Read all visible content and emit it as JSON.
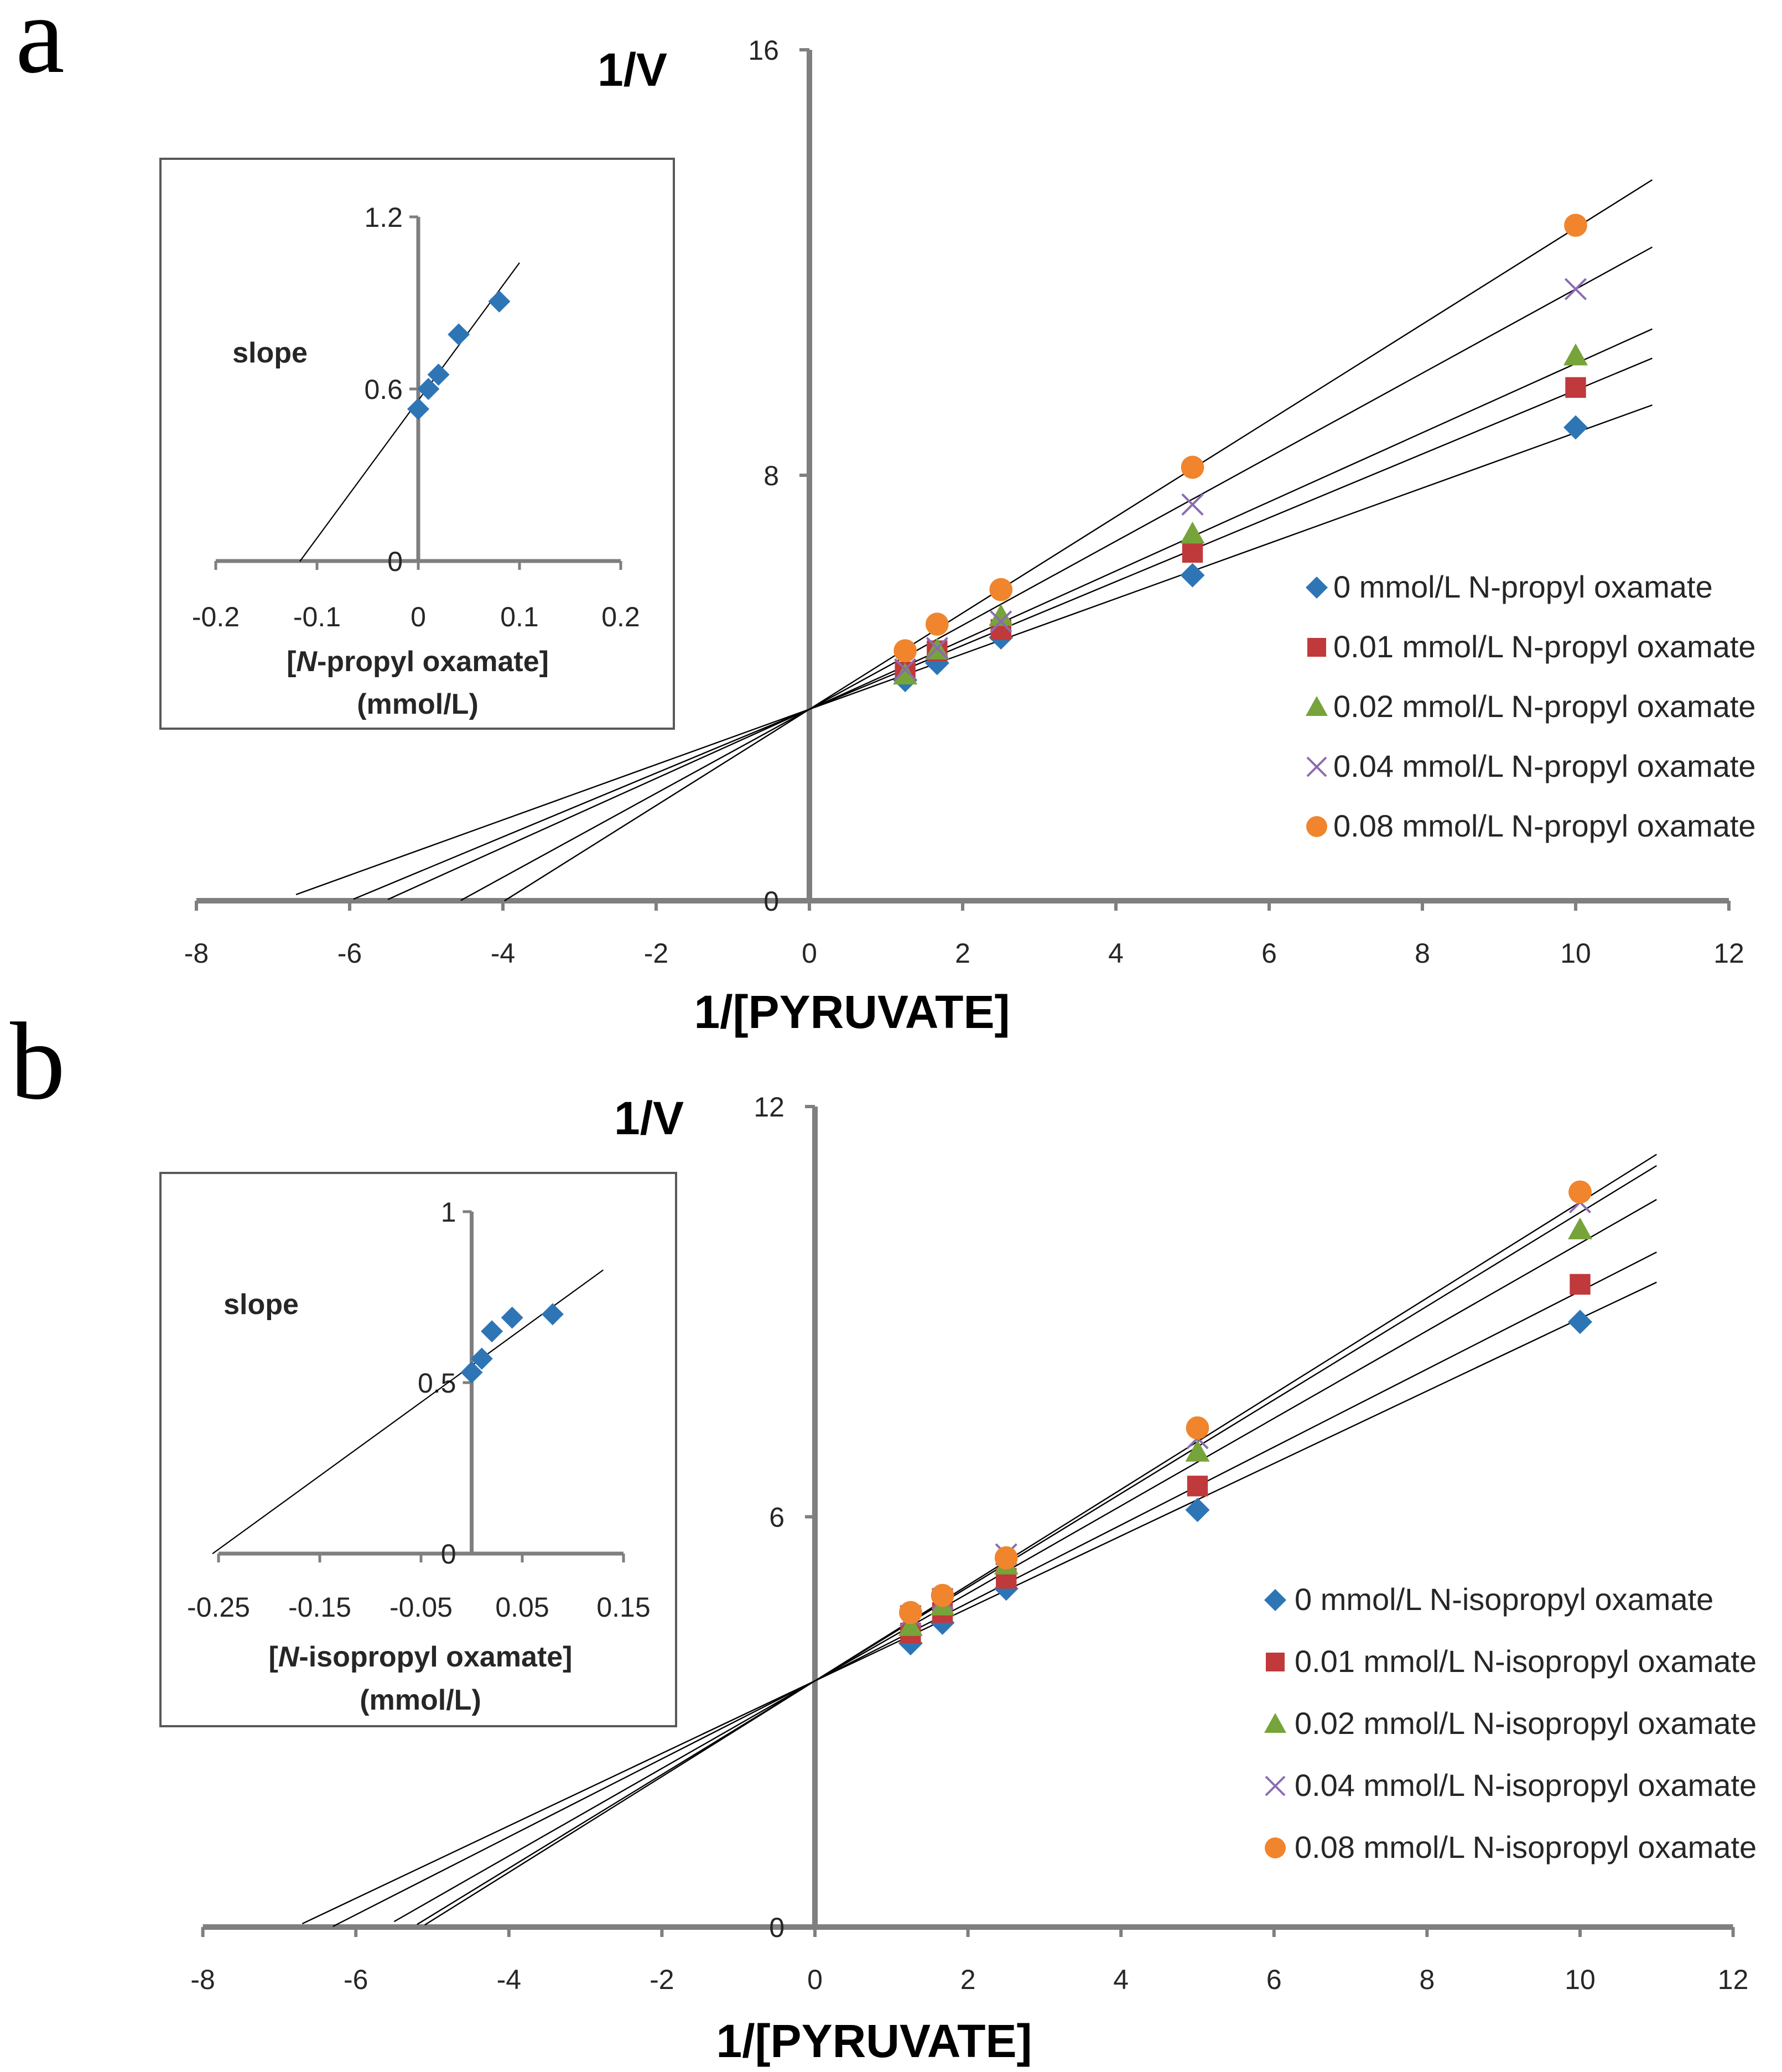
{
  "colors": {
    "series": [
      "#2e75b6",
      "#c0393b",
      "#77a33b",
      "#8c6bb1",
      "#f0852d"
    ],
    "axis": "#7f7f7f",
    "fit_line": "#000000",
    "inset_marker": "#2e75b6"
  },
  "chart_data": [
    {
      "panel_label": "a",
      "type": "scatter",
      "xlabel": "1/[PYRUVATE]",
      "ylabel": "1/V",
      "xlim": [
        -8,
        12
      ],
      "ylim": [
        0,
        16
      ],
      "x_ticks": [
        "-8",
        "-6",
        "-4",
        "-2",
        "0",
        "2",
        "4",
        "6",
        "8",
        "10",
        "12"
      ],
      "y_ticks": [
        "0",
        "8",
        "16"
      ],
      "legend_position": "right",
      "series": [
        {
          "name": "0 mmol/L N-propyl oxamate",
          "marker": "diamond",
          "x": [
            1.25,
            1.667,
            2.5,
            5,
            10
          ],
          "y": [
            4.15,
            4.47,
            4.95,
            6.12,
            8.9
          ],
          "fit": {
            "slope": 0.52,
            "intercept": 3.6,
            "x_from": -6.7,
            "x_to": 11
          }
        },
        {
          "name": "0.01 mmol/L N-propyl oxamate",
          "marker": "square",
          "x": [
            1.25,
            1.667,
            2.5,
            5,
            10
          ],
          "y": [
            4.3,
            4.7,
            5.1,
            6.55,
            9.65
          ],
          "fit": {
            "slope": 0.6,
            "intercept": 3.6,
            "x_from": -5.95,
            "x_to": 11
          }
        },
        {
          "name": "0.02 mmol/L N-propyl oxamate",
          "marker": "triangle",
          "x": [
            1.25,
            1.667,
            2.5,
            5,
            10
          ],
          "y": [
            4.25,
            4.72,
            5.35,
            6.9,
            10.25
          ],
          "fit": {
            "slope": 0.65,
            "intercept": 3.6,
            "x_from": -5.5,
            "x_to": 11
          }
        },
        {
          "name": "0.04 mmol/L N-propyl oxamate",
          "marker": "cross",
          "x": [
            1.25,
            1.667,
            2.5,
            5,
            10
          ],
          "y": [
            4.35,
            4.75,
            5.25,
            7.45,
            11.5
          ],
          "fit": {
            "slope": 0.79,
            "intercept": 3.6,
            "x_from": -4.55,
            "x_to": 11
          }
        },
        {
          "name": "0.08 mmol/L N-propyl oxamate",
          "marker": "circle",
          "x": [
            1.25,
            1.667,
            2.5,
            5,
            10
          ],
          "y": [
            4.7,
            5.2,
            5.85,
            8.15,
            12.7
          ],
          "fit": {
            "slope": 0.905,
            "intercept": 3.6,
            "x_from": -3.98,
            "x_to": 11
          }
        }
      ],
      "inset": {
        "xlabel_prefix": "N",
        "xlabel_rest": "-propyl oxamate]",
        "xlabel_bracket": "[",
        "xlabel_units": "(mmol/L)",
        "ylabel": "slope",
        "xlim": [
          -0.2,
          0.2
        ],
        "ylim": [
          0,
          1.2
        ],
        "x_ticks": [
          "-0.2",
          "-0.1",
          "0",
          "0.1",
          "0.2"
        ],
        "y_ticks": [
          "0",
          "0.6",
          "1.2"
        ],
        "points": {
          "x": [
            0,
            0.01,
            0.02,
            0.04,
            0.08
          ],
          "y": [
            0.53,
            0.6,
            0.65,
            0.79,
            0.905
          ]
        },
        "fit": {
          "slope": 4.8,
          "intercept": 0.56,
          "x_from": -0.117,
          "x_to": 0.1
        }
      }
    },
    {
      "panel_label": "b",
      "type": "scatter",
      "xlabel": "1/[PYRUVATE]",
      "ylabel": "1/V",
      "xlim": [
        -8,
        12
      ],
      "ylim": [
        0,
        12
      ],
      "x_ticks": [
        "-8",
        "-6",
        "-4",
        "-2",
        "0",
        "2",
        "4",
        "6",
        "8",
        "10",
        "12"
      ],
      "y_ticks": [
        "0",
        "6",
        "12"
      ],
      "legend_position": "right",
      "series": [
        {
          "name": "0 mmol/L N-isopropyl oxamate",
          "marker": "diamond",
          "x": [
            1.25,
            1.667,
            2.5,
            5,
            10
          ],
          "y": [
            4.15,
            4.45,
            4.95,
            6.1,
            8.85
          ],
          "fit": {
            "slope": 0.53,
            "intercept": 3.6,
            "x_from": -6.7,
            "x_to": 11
          }
        },
        {
          "name": "0.01 mmol/L N-isopropyl oxamate",
          "marker": "square",
          "x": [
            1.25,
            1.667,
            2.5,
            5,
            10
          ],
          "y": [
            4.3,
            4.6,
            5.1,
            6.45,
            9.4
          ],
          "fit": {
            "slope": 0.57,
            "intercept": 3.6,
            "x_from": -6.3,
            "x_to": 11
          }
        },
        {
          "name": "0.02 mmol/L N-isopropyl oxamate",
          "marker": "triangle",
          "x": [
            1.25,
            1.667,
            2.5,
            5,
            10
          ],
          "y": [
            4.4,
            4.7,
            5.3,
            6.95,
            10.2
          ],
          "fit": {
            "slope": 0.64,
            "intercept": 3.6,
            "x_from": -5.5,
            "x_to": 11
          }
        },
        {
          "name": "0.04 mmol/L N-isopropyl oxamate",
          "marker": "cross",
          "x": [
            1.25,
            1.667,
            2.5,
            5,
            10
          ],
          "y": [
            4.55,
            4.8,
            5.45,
            7.15,
            10.6
          ],
          "fit": {
            "slope": 0.685,
            "intercept": 3.6,
            "x_from": -5.2,
            "x_to": 11
          }
        },
        {
          "name": "0.08 mmol/L N-isopropyl oxamate",
          "marker": "circle",
          "x": [
            1.25,
            1.667,
            2.5,
            5,
            10
          ],
          "y": [
            4.6,
            4.85,
            5.4,
            7.3,
            10.75
          ],
          "fit": {
            "slope": 0.7,
            "intercept": 3.6,
            "x_from": -5.1,
            "x_to": 11
          }
        }
      ],
      "inset": {
        "xlabel_prefix": "N",
        "xlabel_rest": "-isopropyl oxamate]",
        "xlabel_bracket": "[",
        "xlabel_units": "(mmol/L)",
        "ylabel": "slope",
        "xlim": [
          -0.25,
          0.15
        ],
        "ylim": [
          0,
          1
        ],
        "x_ticks": [
          "-0.25",
          "-0.15",
          "-0.05",
          "0.05",
          "0.15"
        ],
        "x_tick_values": [
          -0.25,
          -0.15,
          -0.05,
          0.05,
          0.15
        ],
        "y_ticks": [
          "0",
          "0.5",
          "1"
        ],
        "points": {
          "x": [
            0,
            0.01,
            0.02,
            0.04,
            0.08
          ],
          "y": [
            0.53,
            0.57,
            0.65,
            0.69,
            0.7
          ]
        },
        "fit": {
          "slope": 2.15,
          "intercept": 0.55,
          "x_from": -0.256,
          "x_to": 0.13
        }
      }
    }
  ]
}
